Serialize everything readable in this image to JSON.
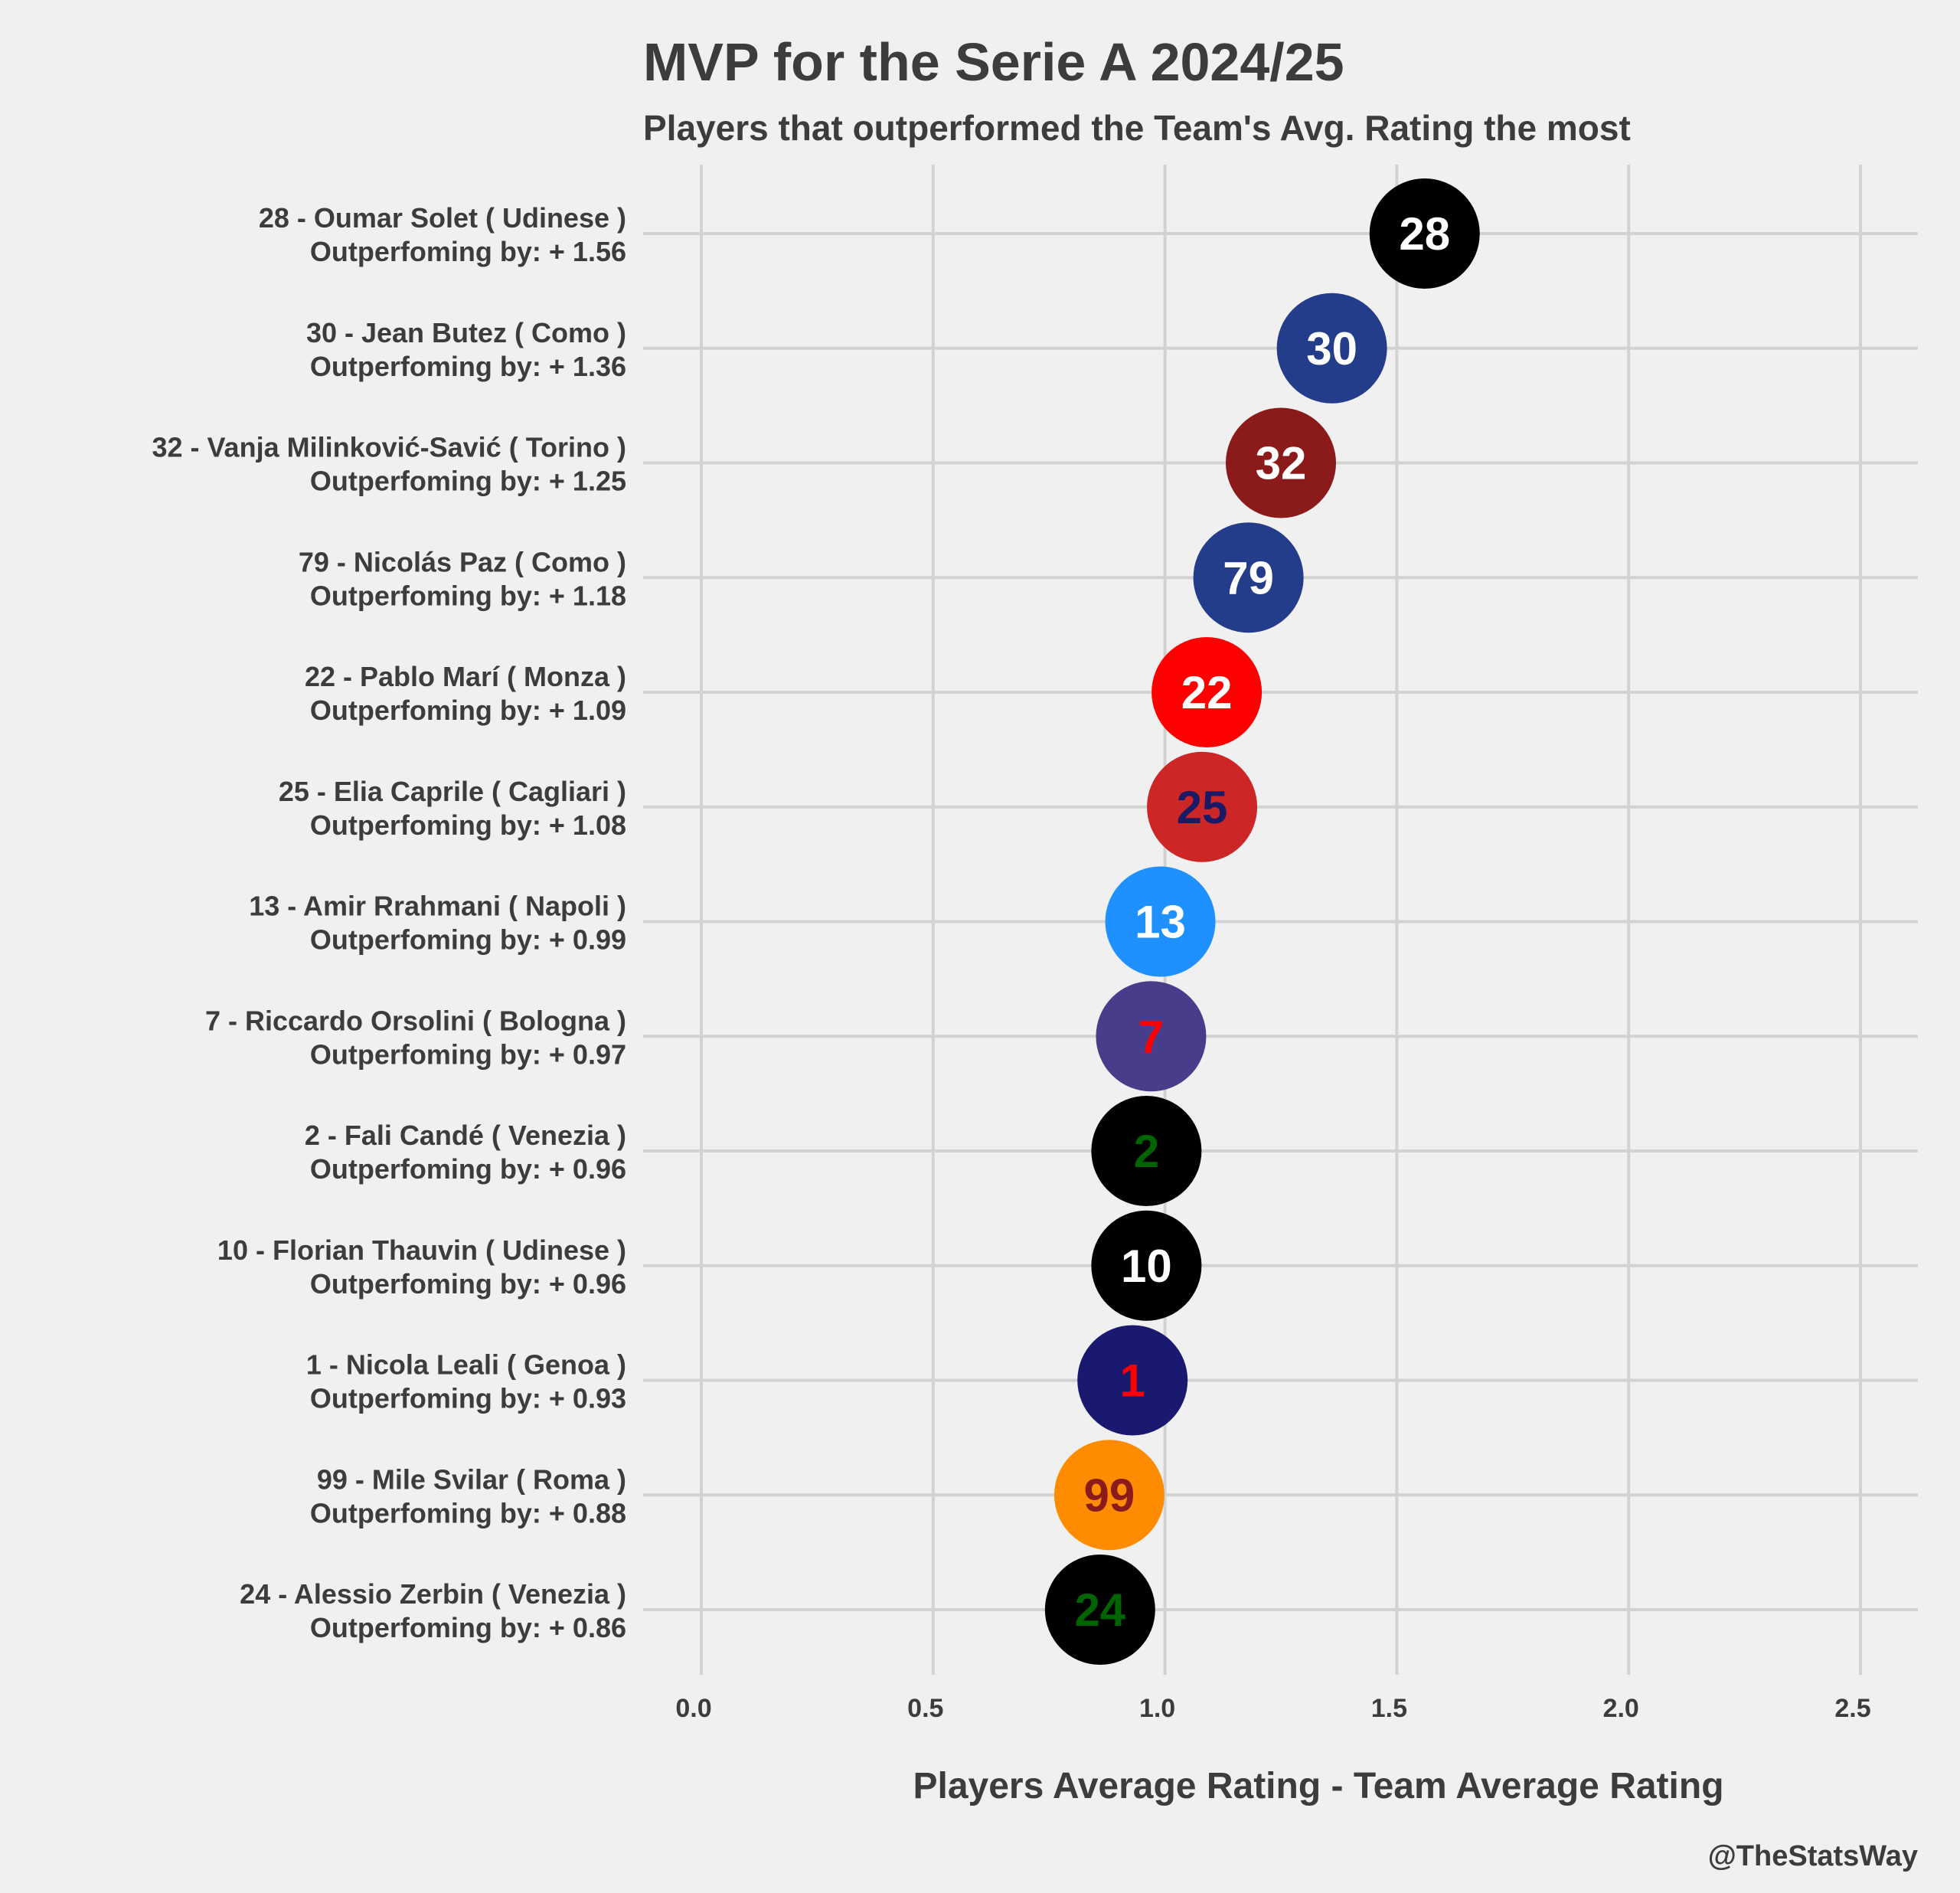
{
  "chart_data": {
    "type": "scatter",
    "title": "MVP for the Serie A 2024/25",
    "subtitle": "Players that outperformed the Team's Avg. Rating the most",
    "xlabel": "Players Average Rating - Team Average Rating",
    "ylabel": "",
    "credit": "@TheStatsWay",
    "xlim": [
      0,
      2.5
    ],
    "xticks": [
      "0.0",
      "0.5",
      "1.0",
      "1.5",
      "2.0",
      "2.5"
    ],
    "xtick_values": [
      0,
      0.5,
      1.0,
      1.5,
      2.0,
      2.5
    ],
    "grid": true,
    "points": [
      {
        "number": "28",
        "line1": "28 - Oumar Solet ( Udinese )",
        "line2": "Outperfoming by: + 1.56",
        "x": 1.56,
        "fill": "#000000",
        "text_color": "#ffffff"
      },
      {
        "number": "30",
        "line1": "30 - Jean Butez ( Como )",
        "line2": "Outperfoming by: + 1.36",
        "x": 1.36,
        "fill": "#243d8b",
        "text_color": "#ffffff"
      },
      {
        "number": "32",
        "line1": "32 - Vanja Milinković-Savić ( Torino )",
        "line2": "Outperfoming by: + 1.25",
        "x": 1.25,
        "fill": "#8b1a1a",
        "text_color": "#ffffff"
      },
      {
        "number": "79",
        "line1": "79 - Nicolás Paz ( Como )",
        "line2": "Outperfoming by: + 1.18",
        "x": 1.18,
        "fill": "#243d8b",
        "text_color": "#ffffff"
      },
      {
        "number": "22",
        "line1": "22 - Pablo Marí ( Monza )",
        "line2": "Outperfoming by: + 1.09",
        "x": 1.09,
        "fill": "#ff0000",
        "text_color": "#ffffff"
      },
      {
        "number": "25",
        "line1": "25 - Elia Caprile ( Cagliari )",
        "line2": "Outperfoming by: + 1.08",
        "x": 1.08,
        "fill": "#cd2626",
        "text_color": "#1a1a66"
      },
      {
        "number": "13",
        "line1": "13 - Amir Rrahmani ( Napoli )",
        "line2": "Outperfoming by: + 0.99",
        "x": 0.99,
        "fill": "#1e90ff",
        "text_color": "#ffffff"
      },
      {
        "number": "7",
        "line1": "7 - Riccardo Orsolini ( Bologna )",
        "line2": "Outperfoming by: + 0.97",
        "x": 0.97,
        "fill": "#483d8b",
        "text_color": "#ff0000"
      },
      {
        "number": "2",
        "line1": "2 - Fali Candé ( Venezia )",
        "line2": "Outperfoming by: + 0.96",
        "x": 0.96,
        "fill": "#000000",
        "text_color": "#006400"
      },
      {
        "number": "10",
        "line1": "10 - Florian Thauvin ( Udinese )",
        "line2": "Outperfoming by: + 0.96",
        "x": 0.96,
        "fill": "#000000",
        "text_color": "#ffffff"
      },
      {
        "number": "1",
        "line1": "1 - Nicola Leali ( Genoa )",
        "line2": "Outperfoming by: + 0.93",
        "x": 0.93,
        "fill": "#191970",
        "text_color": "#ff0000"
      },
      {
        "number": "99",
        "line1": "99 - Mile Svilar ( Roma )",
        "line2": "Outperfoming by: + 0.88",
        "x": 0.88,
        "fill": "#ff8c00",
        "text_color": "#8b1a1a"
      },
      {
        "number": "24",
        "line1": "24 - Alessio Zerbin ( Venezia )",
        "line2": "Outperfoming by: + 0.86",
        "x": 0.86,
        "fill": "#000000",
        "text_color": "#006400"
      }
    ]
  }
}
